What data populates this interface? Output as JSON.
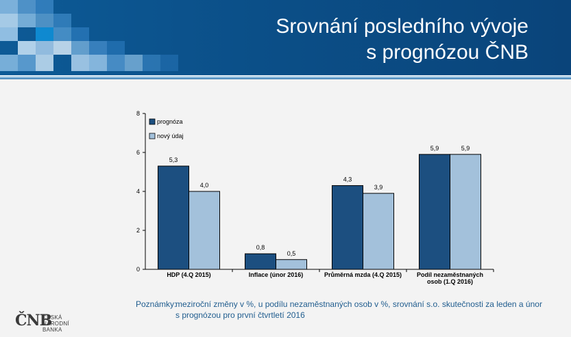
{
  "header": {
    "title_line1": "Srovnání posledního vývoje",
    "title_line2": "s prognózou ČNB"
  },
  "colors": {
    "header_bg": "#0b4f88",
    "prognoza": "#1c4f80",
    "novy_udaj": "#a3c1db",
    "note_text": "#1f5c8e"
  },
  "chart_data": {
    "type": "bar",
    "categories": [
      [
        "HDP (4.Q 2015)"
      ],
      [
        "Inflace (únor 2016)"
      ],
      [
        "Průměrná mzda (4.Q 2015)"
      ],
      [
        "Podíl nezaměstnaných",
        "osob (1.Q 2016)"
      ]
    ],
    "series": [
      {
        "name": "prognóza",
        "values": [
          5.3,
          0.8,
          4.3,
          5.9
        ],
        "labels": [
          "5,3",
          "0,8",
          "4,3",
          "5,9"
        ]
      },
      {
        "name": "nový údaj",
        "values": [
          4.0,
          0.5,
          3.9,
          5.9
        ],
        "labels": [
          "4,0",
          "0,5",
          "3,9",
          "5,9"
        ]
      }
    ],
    "ylim": [
      0,
      8
    ],
    "yticks": [
      0,
      2,
      4,
      6,
      8
    ],
    "legend_position": "top-left",
    "grid": false
  },
  "notes": {
    "label": "Poznámky:",
    "line1": "meziroční změny v %, u podílu nezaměstnaných osob v %, srovnání s.o. skutečnosti za leden a únor",
    "line2": "s prognózou pro první čtvrtletí 2016"
  },
  "logo": {
    "mark": "ČNB",
    "line1": "ČESKÁ",
    "line2": "NÁRODNÍ BANKA"
  }
}
